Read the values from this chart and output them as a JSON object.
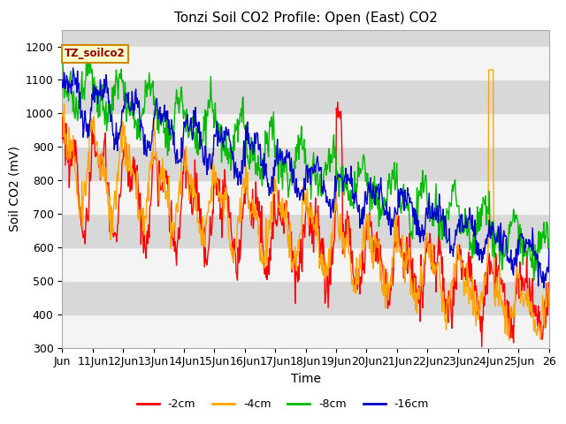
{
  "title": "Tonzi Soil CO2 Profile: Open (East) CO2",
  "xlabel": "Time",
  "ylabel": "Soil CO2 (mV)",
  "ylim": [
    300,
    1250
  ],
  "xtick_labels": [
    "Jun",
    "11Jun",
    "12Jun",
    "13Jun",
    "14Jun",
    "15Jun",
    "16Jun",
    "17Jun",
    "18Jun",
    "19Jun",
    "20Jun",
    "21Jun",
    "22Jun",
    "23Jun",
    "24Jun",
    "25Jun",
    "26"
  ],
  "colors": {
    "-2cm": "#ff0000",
    "-4cm": "#ffa500",
    "-8cm": "#00bb00",
    "-16cm": "#0000cc"
  },
  "legend_label": "TZ_soilco2",
  "plot_bg_color": "#d8d8d8",
  "white_band_color": "#f0f0f0",
  "gray_band_color": "#d8d8d8",
  "fig_bg_color": "#ffffff",
  "yticks": [
    300,
    400,
    500,
    600,
    700,
    800,
    900,
    1000,
    1100,
    1200
  ],
  "title_fontsize": 11,
  "axis_fontsize": 9,
  "label_fontsize": 10
}
